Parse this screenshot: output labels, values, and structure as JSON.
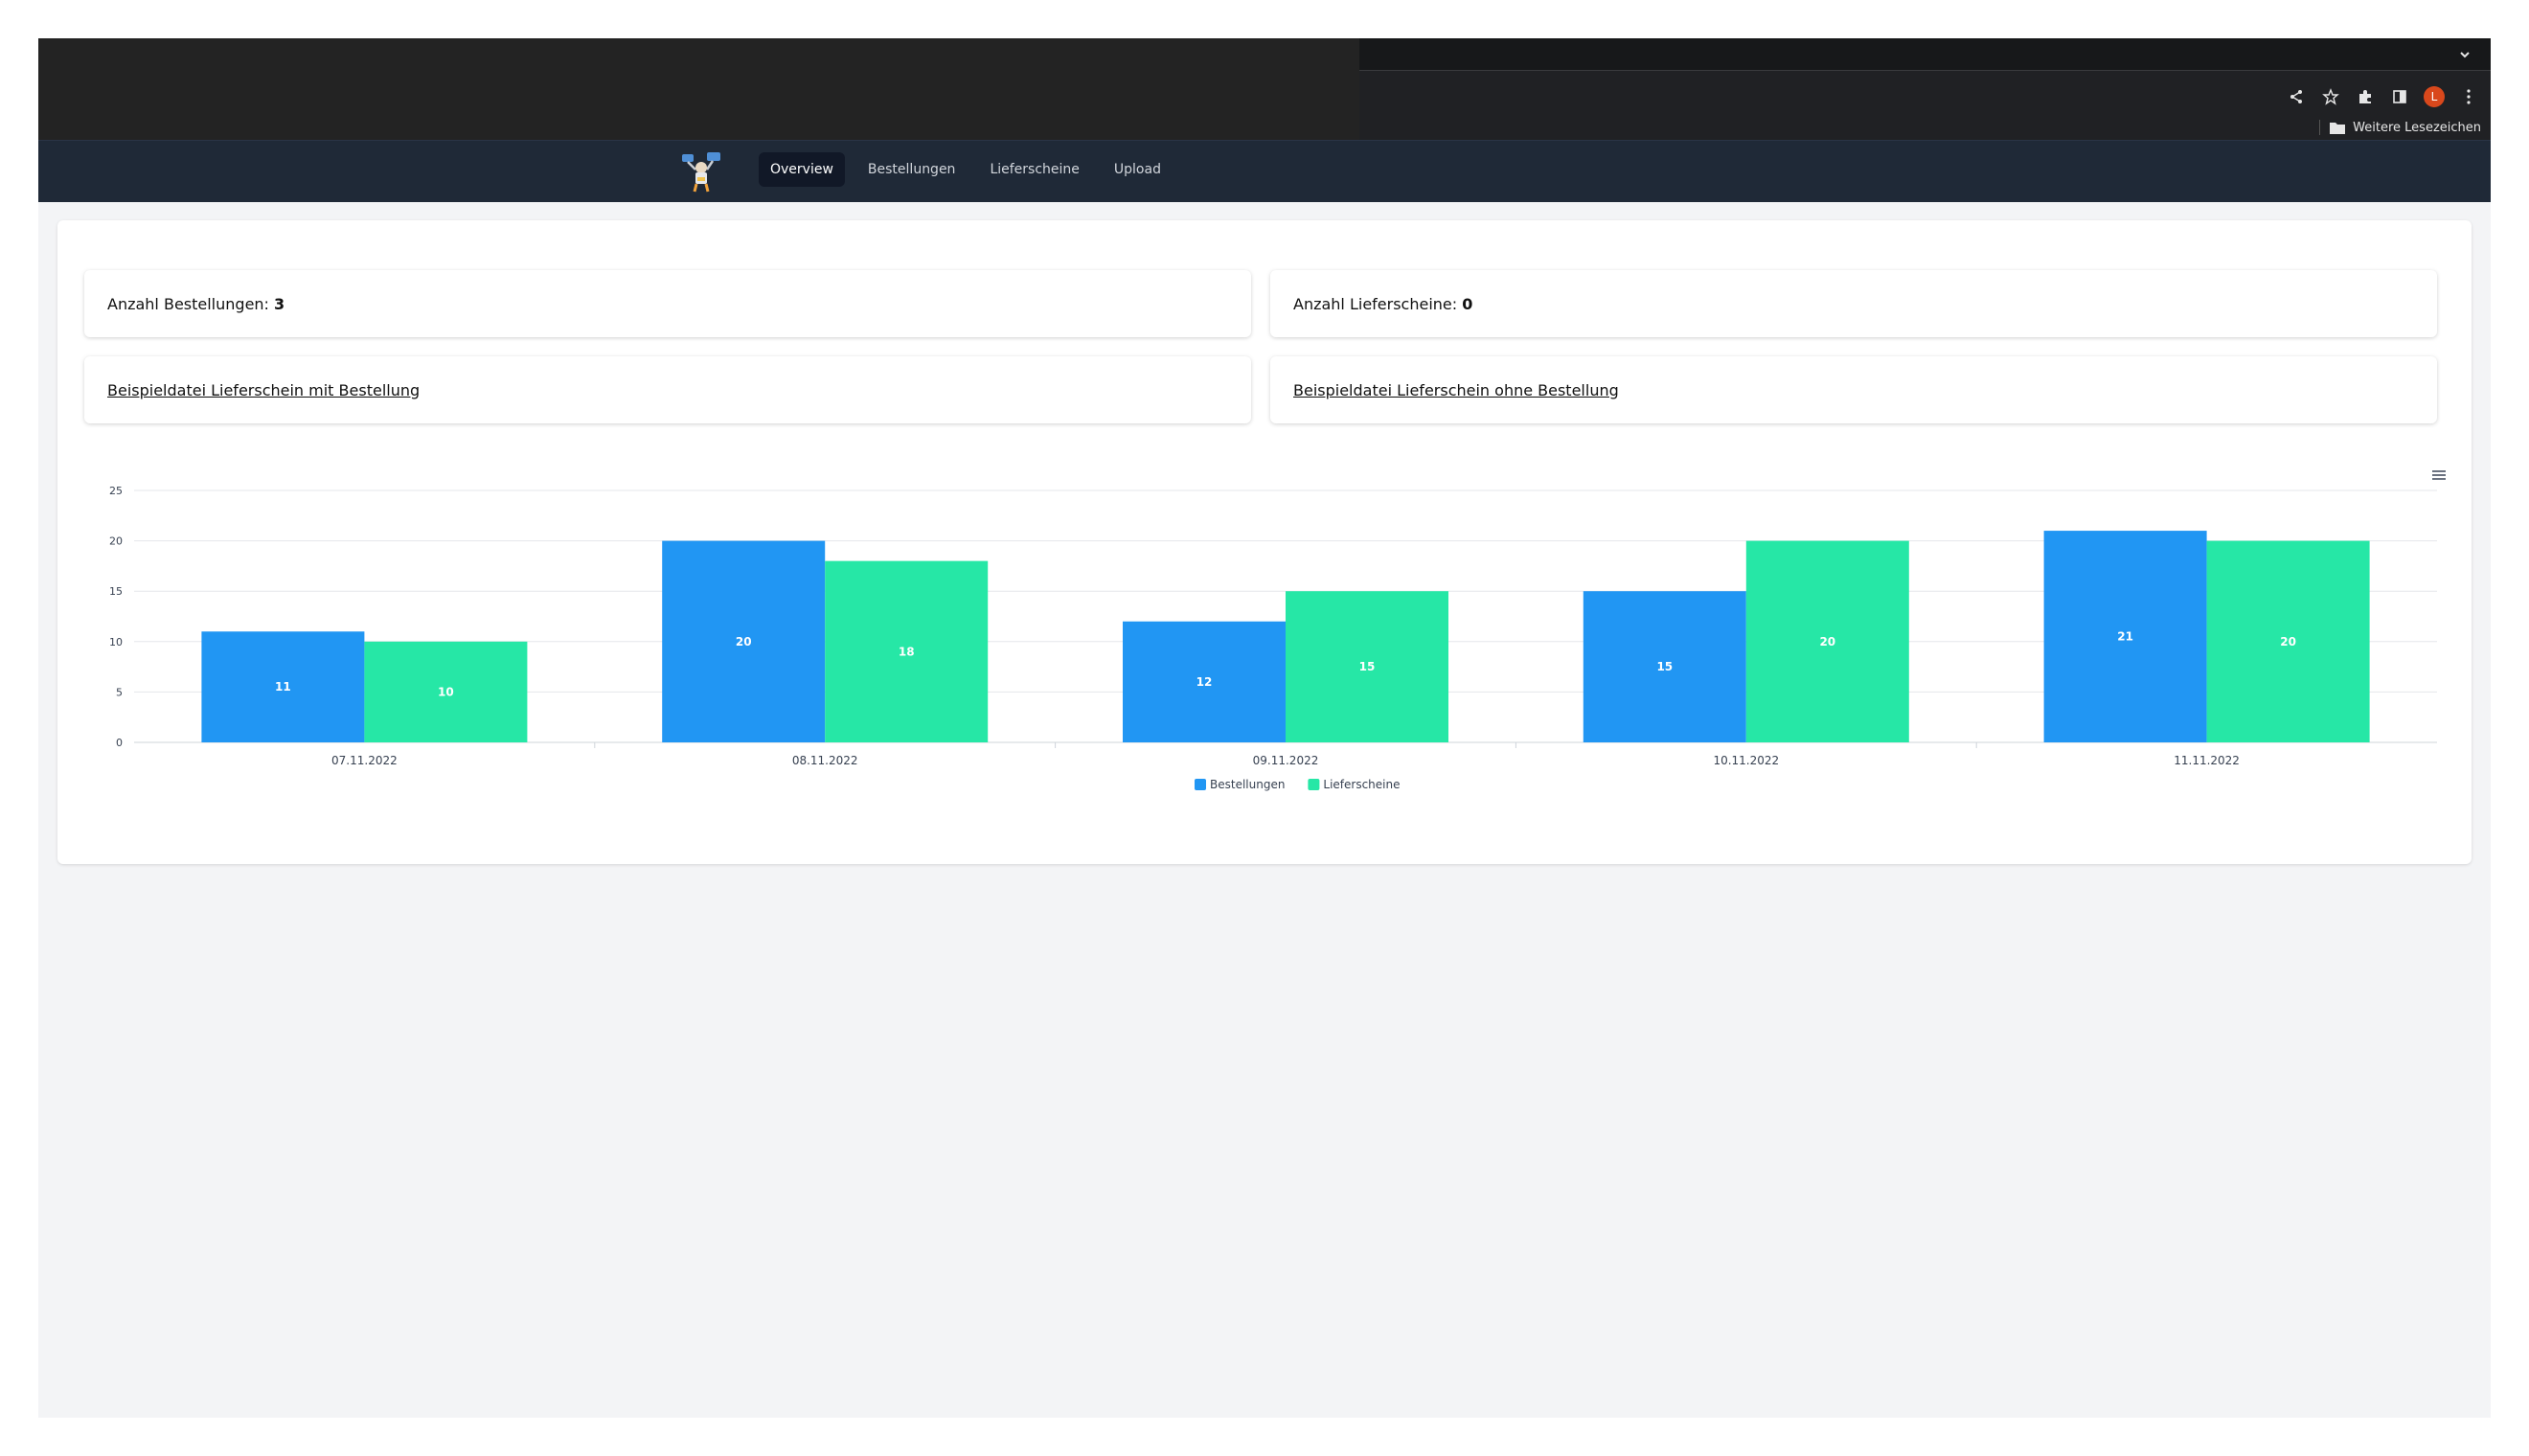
{
  "browser": {
    "bookmarks_folder": "Weitere Lesezeichen",
    "profile_initial": "L",
    "profile_color": "#d9481c"
  },
  "nav": {
    "items": [
      {
        "label": "Overview",
        "active": true
      },
      {
        "label": "Bestellungen",
        "active": false
      },
      {
        "label": "Lieferscheine",
        "active": false
      },
      {
        "label": "Upload",
        "active": false
      }
    ]
  },
  "stats": {
    "orders_label": "Anzahl Bestellungen:",
    "orders_value": "3",
    "delivery_label": "Anzahl Lieferscheine:",
    "delivery_value": "0"
  },
  "links": {
    "with_order": "Beispieldatei Lieferschein mit Bestellung",
    "without_order": "Beispieldatei Lieferschein ohne Bestellung"
  },
  "chart_data": {
    "type": "bar",
    "categories": [
      "07.11.2022",
      "08.11.2022",
      "09.11.2022",
      "10.11.2022",
      "11.11.2022"
    ],
    "series": [
      {
        "name": "Bestellungen",
        "values": [
          11,
          20,
          12,
          15,
          21
        ],
        "color": "#2196f3"
      },
      {
        "name": "Lieferscheine",
        "values": [
          10,
          18,
          15,
          20,
          20
        ],
        "color": "#26e7a6"
      }
    ],
    "ylim": [
      0,
      25
    ],
    "yticks": [
      0,
      5,
      10,
      15,
      20,
      25
    ],
    "grid": true,
    "legend": "bottom-center",
    "data_labels": true
  }
}
